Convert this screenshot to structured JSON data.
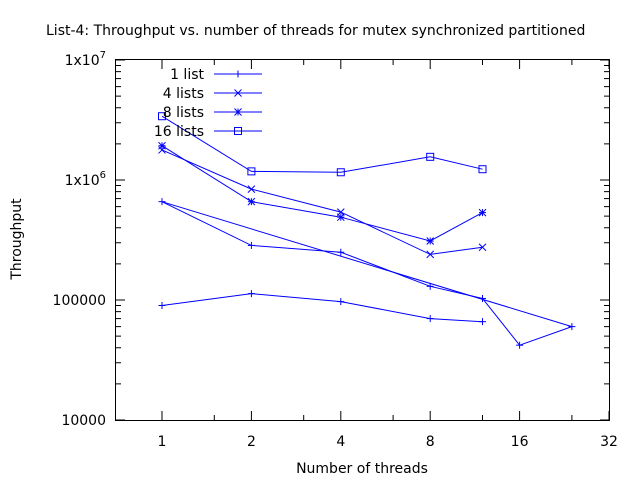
{
  "chart_data": {
    "type": "line",
    "title": "List-4: Throughput vs. number of threads for mutex synchronized partitioned",
    "xlabel": "Number of threads",
    "ylabel": "Throughput",
    "x_scale": "log2",
    "y_scale": "log10",
    "xlim": [
      0.7,
      32
    ],
    "ylim": [
      10000,
      10000000
    ],
    "x_ticks": [
      1,
      2,
      4,
      8,
      16,
      32
    ],
    "x_tick_labels": [
      "1",
      "2",
      "4",
      "8",
      "16",
      "32"
    ],
    "y_ticks": [
      10000,
      100000,
      1000000,
      10000000
    ],
    "y_tick_labels": [
      {
        "base": "10000",
        "exp": ""
      },
      {
        "base": "100000",
        "exp": ""
      },
      {
        "base": "1x10",
        "exp": "6"
      },
      {
        "base": "1x10",
        "exp": "7"
      }
    ],
    "grid": false,
    "legend_position": "top-left",
    "series_color": "#0000ff",
    "series": [
      {
        "name": "1 list",
        "marker": "plus",
        "segments": [
          {
            "x": [
              1,
              2,
              4,
              8,
              12
            ],
            "y": [
              90000,
              113000,
              97000,
              70000,
              66000
            ]
          },
          {
            "x": [
              1,
              2,
              4,
              8,
              12,
              16,
              24
            ],
            "y": [
              660000,
              285000,
              250000,
              130000,
              103000,
              42000,
              60000
            ]
          },
          {
            "x": [
              1,
              24
            ],
            "y": [
              660000,
              60000
            ]
          }
        ]
      },
      {
        "name": "4 lists",
        "marker": "cross",
        "segments": [
          {
            "x": [
              1,
              2,
              4,
              8,
              12
            ],
            "y": [
              1780000,
              840000,
              540000,
              240000,
              275000
            ]
          }
        ]
      },
      {
        "name": "8 lists",
        "marker": "star",
        "segments": [
          {
            "x": [
              1,
              2,
              4,
              8,
              12
            ],
            "y": [
              1930000,
              660000,
              490000,
              310000,
              535000
            ]
          }
        ]
      },
      {
        "name": "16 lists",
        "marker": "square",
        "segments": [
          {
            "x": [
              1,
              2,
              4,
              8,
              12
            ],
            "y": [
              3400000,
              1180000,
              1160000,
              1560000,
              1230000
            ]
          }
        ]
      }
    ]
  }
}
